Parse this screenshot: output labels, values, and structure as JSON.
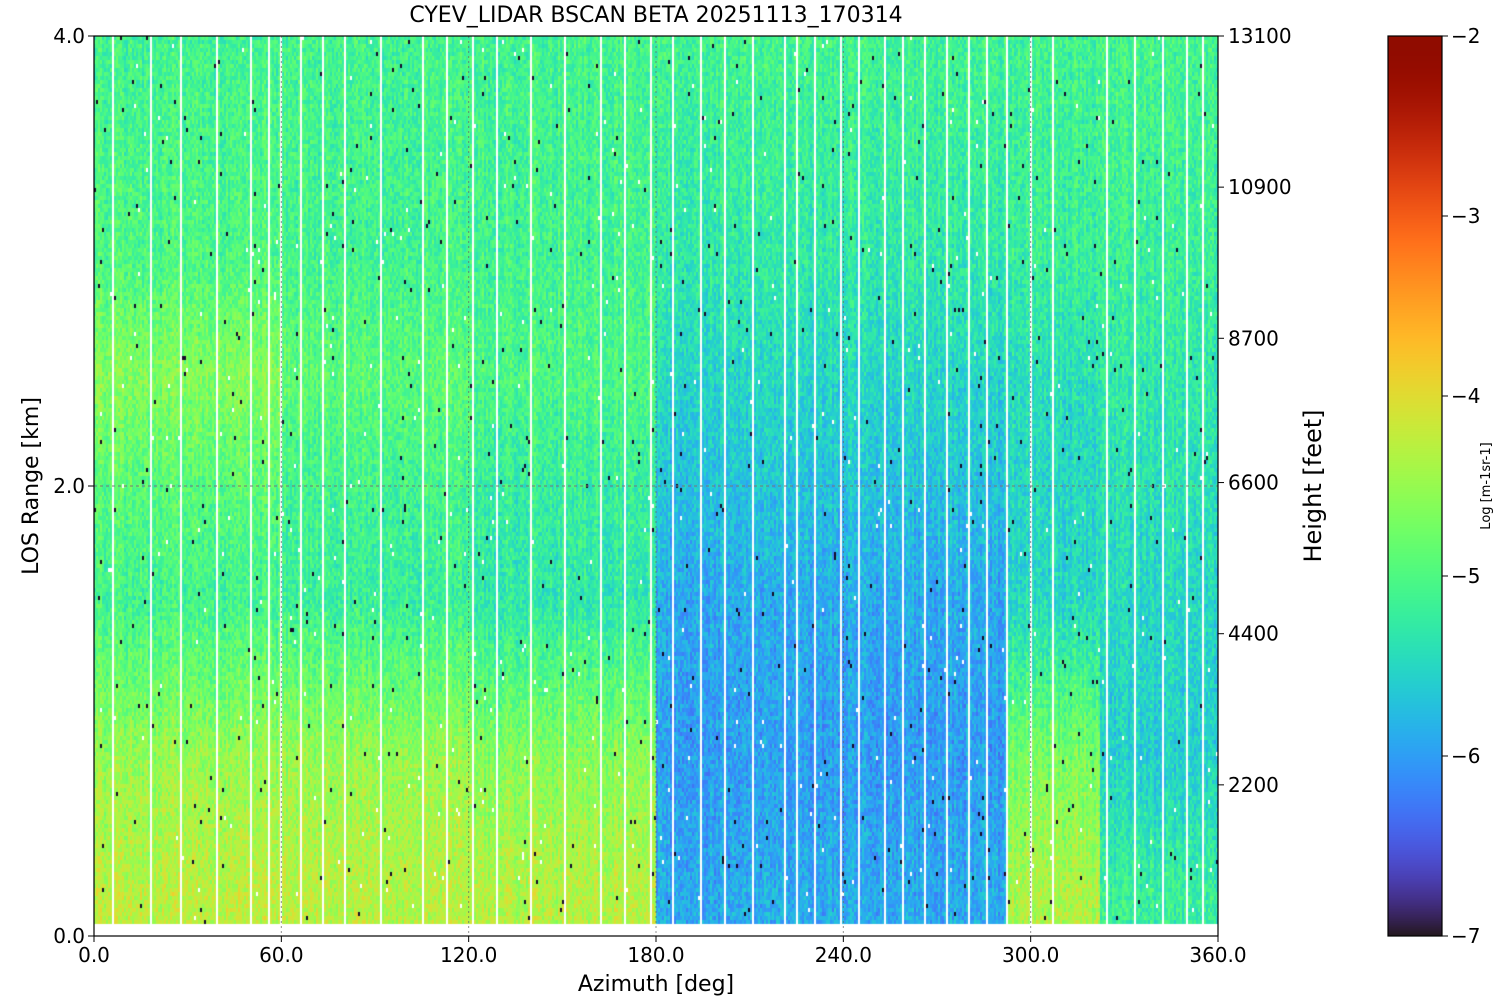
{
  "chart_data": {
    "type": "heatmap",
    "title": "CYEV_LIDAR BSCAN BETA  20251113_170314",
    "xlabel": "Azimuth [deg]",
    "ylabel": "LOS Range [km]",
    "y2label": "Height [feet]",
    "colorbar_label": "Log [m-1sr-1]",
    "colormap": "turbo",
    "xlim": [
      0,
      360
    ],
    "ylim": [
      0,
      4
    ],
    "clim": [
      -7,
      -2
    ],
    "x_ticks": [
      "0.0",
      "60.0",
      "120.0",
      "180.0",
      "240.0",
      "300.0",
      "360.0"
    ],
    "x_tick_values": [
      0,
      60,
      120,
      180,
      240,
      300,
      360
    ],
    "y_ticks": [
      "0.0",
      "2.0",
      "4.0"
    ],
    "y_tick_values": [
      0,
      2,
      4
    ],
    "y2_ticks": [
      "2200",
      "4400",
      "6600",
      "8700",
      "10900",
      "13100"
    ],
    "y2_tick_values": [
      2200,
      4400,
      6600,
      8700,
      10900,
      13100
    ],
    "cbar_ticks": [
      "−7",
      "−6",
      "−5",
      "−4",
      "−3",
      "−2"
    ],
    "cbar_tick_values": [
      -7,
      -6,
      -5,
      -4,
      -3,
      -2
    ],
    "data_range_km": [
      0.06,
      4.0
    ],
    "reference_lines": {
      "range_km": 2.0,
      "azimuth_deg": [
        60,
        120,
        180,
        240,
        300
      ]
    },
    "grid": false,
    "gap_azimuths_deg": [
      6,
      18,
      28,
      39,
      50,
      56,
      60,
      66,
      73,
      80,
      92,
      105,
      113,
      121,
      129,
      140,
      151,
      162,
      170,
      178,
      185,
      194,
      202,
      211,
      221,
      225,
      231,
      239,
      245,
      253,
      259,
      266,
      273,
      280,
      286,
      292,
      300,
      307,
      315,
      324,
      333,
      342,
      350,
      355
    ],
    "profiles": [
      {
        "azimuth_range_deg": [
          0,
          60
        ],
        "boundary_layer_top_km": 0.85,
        "values": [
          {
            "range_km": 0.2,
            "log_beta": -4.25
          },
          {
            "range_km": 0.8,
            "log_beta": -4.5
          },
          {
            "range_km": 1.5,
            "log_beta": -5.1
          },
          {
            "range_km": 2.0,
            "log_beta": -4.9
          },
          {
            "range_km": 2.5,
            "log_beta": -4.6
          },
          {
            "range_km": 3.0,
            "log_beta": -5.0
          },
          {
            "range_km": 4.0,
            "log_beta": -5.1
          }
        ]
      },
      {
        "azimuth_range_deg": [
          60,
          120
        ],
        "boundary_layer_top_km": 0.95,
        "values": [
          {
            "range_km": 0.2,
            "log_beta": -4.3
          },
          {
            "range_km": 0.8,
            "log_beta": -4.5
          },
          {
            "range_km": 1.5,
            "log_beta": -5.2
          },
          {
            "range_km": 2.0,
            "log_beta": -5.1
          },
          {
            "range_km": 2.5,
            "log_beta": -4.9
          },
          {
            "range_km": 3.0,
            "log_beta": -5.1
          },
          {
            "range_km": 4.0,
            "log_beta": -5.1
          }
        ]
      },
      {
        "azimuth_range_deg": [
          120,
          180
        ],
        "boundary_layer_top_km": 0.8,
        "values": [
          {
            "range_km": 0.2,
            "log_beta": -4.3
          },
          {
            "range_km": 0.8,
            "log_beta": -4.6
          },
          {
            "range_km": 1.5,
            "log_beta": -5.3
          },
          {
            "range_km": 2.0,
            "log_beta": -5.2
          },
          {
            "range_km": 2.5,
            "log_beta": -5.0
          },
          {
            "range_km": 3.0,
            "log_beta": -5.1
          },
          {
            "range_km": 4.0,
            "log_beta": -5.1
          }
        ]
      },
      {
        "azimuth_range_deg": [
          180,
          292
        ],
        "boundary_layer_top_km": 0.0,
        "values": [
          {
            "range_km": 0.2,
            "log_beta": -5.9
          },
          {
            "range_km": 0.8,
            "log_beta": -6.0
          },
          {
            "range_km": 1.5,
            "log_beta": -5.9
          },
          {
            "range_km": 2.0,
            "log_beta": -5.7
          },
          {
            "range_km": 2.5,
            "log_beta": -5.5
          },
          {
            "range_km": 3.0,
            "log_beta": -5.3
          },
          {
            "range_km": 4.0,
            "log_beta": -5.1
          }
        ]
      },
      {
        "azimuth_range_deg": [
          292,
          322
        ],
        "boundary_layer_top_km": 0.7,
        "values": [
          {
            "range_km": 0.2,
            "log_beta": -4.35
          },
          {
            "range_km": 0.8,
            "log_beta": -4.7
          },
          {
            "range_km": 1.5,
            "log_beta": -5.5
          },
          {
            "range_km": 2.0,
            "log_beta": -5.5
          },
          {
            "range_km": 2.5,
            "log_beta": -5.4
          },
          {
            "range_km": 3.0,
            "log_beta": -5.2
          },
          {
            "range_km": 4.0,
            "log_beta": -5.1
          }
        ]
      },
      {
        "azimuth_range_deg": [
          322,
          360
        ],
        "boundary_layer_top_km": 0.45,
        "values": [
          {
            "range_km": 0.2,
            "log_beta": -5.2
          },
          {
            "range_km": 0.8,
            "log_beta": -5.6
          },
          {
            "range_km": 1.5,
            "log_beta": -5.5
          },
          {
            "range_km": 2.0,
            "log_beta": -5.4
          },
          {
            "range_km": 2.5,
            "log_beta": -5.3
          },
          {
            "range_km": 3.0,
            "log_beta": -5.2
          },
          {
            "range_km": 4.0,
            "log_beta": -5.1
          }
        ]
      }
    ]
  }
}
